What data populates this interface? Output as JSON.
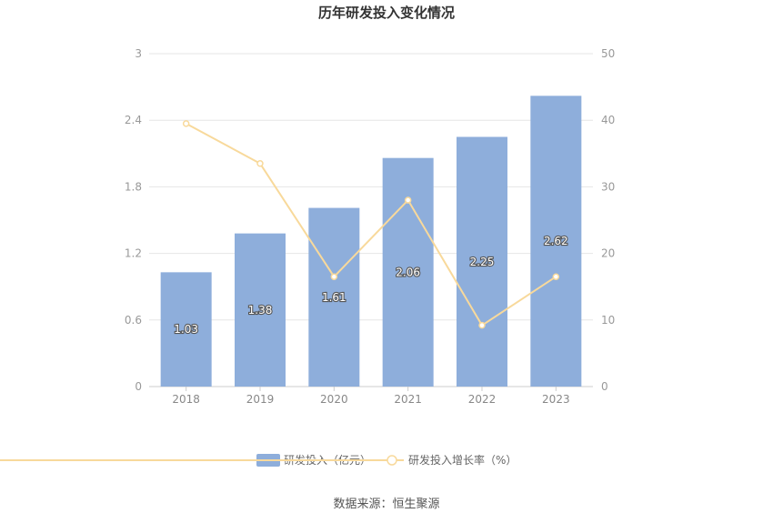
{
  "chart_data": {
    "type": "bar",
    "title": "历年研发投入变化情况",
    "categories": [
      "2018",
      "2019",
      "2020",
      "2021",
      "2022",
      "2023"
    ],
    "series": [
      {
        "name": "研发投入（亿元）",
        "type": "bar",
        "axis": "left",
        "values": [
          1.03,
          1.38,
          1.61,
          2.06,
          2.25,
          2.62
        ],
        "labels": [
          "1.03",
          "1.38",
          "1.61",
          "2.06",
          "2.25",
          "2.62"
        ],
        "color": "#8eaedb"
      },
      {
        "name": "研发投入增长率（%）",
        "type": "line",
        "axis": "right",
        "values": [
          39.5,
          33.5,
          16.5,
          28.0,
          9.2,
          16.5
        ],
        "color": "#f8d99b"
      }
    ],
    "y_left": {
      "ylim": [
        0,
        3
      ],
      "ticks": [
        "0",
        "0.6",
        "1.2",
        "1.8",
        "2.4",
        "3"
      ]
    },
    "y_right": {
      "ylim": [
        0,
        50
      ],
      "ticks": [
        "0",
        "10",
        "20",
        "30",
        "40",
        "50"
      ]
    },
    "grid": true,
    "legend": "bottom-center"
  },
  "source": "数据来源：恒生聚源"
}
